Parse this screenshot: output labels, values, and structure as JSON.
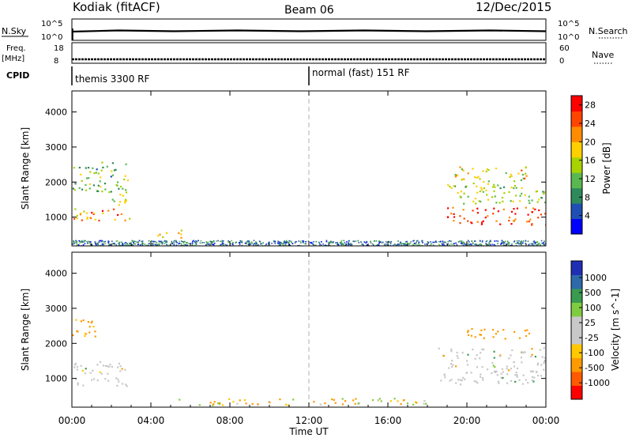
{
  "header": {
    "station": "Kodiak (fitACF)",
    "beam": "Beam 06",
    "date": "12/Dec/2015"
  },
  "top_panels": {
    "nsky": {
      "label": "N.Sky",
      "ticks_left": [
        "10^5",
        "10^0"
      ],
      "right_label": "N.Search",
      "ticks_right": [
        "10^5",
        "10^0"
      ]
    },
    "freq": {
      "label_line1": "Freq.",
      "label_line2": "[MHz]",
      "ticks_left": [
        "18",
        "8"
      ],
      "right_label": "Nave",
      "ticks_right": [
        "60",
        "0"
      ]
    },
    "cpid": {
      "label": "CPID",
      "segments": [
        {
          "label": "themis 3300 RF"
        },
        {
          "label": "normal (fast) 151 RF"
        }
      ]
    }
  },
  "colors": {
    "power_scale": [
      "#0000ff",
      "#1f4fb4",
      "#2e8a5a",
      "#5ab850",
      "#a8d200",
      "#ffd000",
      "#ff8c00",
      "#ff4400",
      "#ff0000"
    ],
    "velocity_scale": [
      "#ff0000",
      "#ff5a00",
      "#ff9a00",
      "#ffc800",
      "#c8c8c8",
      "#c8c8c8",
      "#80cc40",
      "#3a9a50",
      "#2e6aaa",
      "#1f2fb4"
    ],
    "ground_scatter": "#c8c8c8"
  },
  "chart_data": [
    {
      "type": "heatmap",
      "title": "Power",
      "xlabel": "Time UT",
      "ylabel": "Slant Range [km]",
      "xlim": [
        "00:00",
        "24:00"
      ],
      "ylim": [
        180,
        4600
      ],
      "x_ticks": [
        "00:00",
        "04:00",
        "08:00",
        "12:00",
        "16:00",
        "20:00",
        "00:00"
      ],
      "y_ticks": [
        1000,
        2000,
        3000,
        4000
      ],
      "colorbar_label": "Power [dB]",
      "colorbar_ticks": [
        4,
        8,
        12,
        16,
        20,
        24,
        28
      ],
      "colorbar_range": [
        0,
        30
      ],
      "marker_time_hours": 12,
      "features": [
        {
          "t_start": 0.0,
          "t_end": 3.0,
          "range_start": 900,
          "range_end": 1300,
          "value_dB": 22
        },
        {
          "t_start": 0.0,
          "t_end": 2.8,
          "range_start": 1700,
          "range_end": 2600,
          "value_dB": 12
        },
        {
          "t_start": 2.0,
          "t_end": 2.9,
          "range_start": 1300,
          "range_end": 1900,
          "value_dB": 16
        },
        {
          "t_start": 4.2,
          "t_end": 5.6,
          "range_start": 350,
          "range_end": 650,
          "value_dB": 18
        },
        {
          "t_start": 18.8,
          "t_end": 24.0,
          "range_start": 800,
          "range_end": 1300,
          "value_dB": 26
        },
        {
          "t_start": 19.0,
          "t_end": 24.0,
          "range_start": 1400,
          "range_end": 2100,
          "value_dB": 14
        },
        {
          "t_start": 19.2,
          "t_end": 23.0,
          "range_start": 2100,
          "range_end": 2500,
          "value_dB": 18
        }
      ]
    },
    {
      "type": "heatmap",
      "title": "Velocity",
      "xlabel": "Time UT",
      "ylabel": "Slant Range [km]",
      "xlim": [
        "00:00",
        "24:00"
      ],
      "ylim": [
        180,
        4600
      ],
      "x_ticks": [
        "00:00",
        "04:00",
        "08:00",
        "12:00",
        "16:00",
        "20:00",
        "00:00"
      ],
      "y_ticks": [
        1000,
        2000,
        3000,
        4000
      ],
      "colorbar_label": "Velocity [m s^-1]",
      "colorbar_ticks": [
        1000,
        500,
        100,
        25,
        -25,
        -100,
        -500,
        -1000
      ],
      "marker_time_hours": 12,
      "features": [
        {
          "t_start": 0.0,
          "t_end": 2.8,
          "range_start": 800,
          "range_end": 1500,
          "value_ms": 0,
          "ground_scatter": true
        },
        {
          "t_start": 0.0,
          "t_end": 1.5,
          "range_start": 2200,
          "range_end": 2700,
          "value_ms": -200
        },
        {
          "t_start": 18.5,
          "t_end": 24.0,
          "range_start": 850,
          "range_end": 1900,
          "value_ms": 0,
          "ground_scatter": true
        },
        {
          "t_start": 20.0,
          "t_end": 23.5,
          "range_start": 2150,
          "range_end": 2450,
          "value_ms": -250
        },
        {
          "t_start": 5.0,
          "t_end": 18.0,
          "range_start": 250,
          "range_end": 450,
          "value_ms": -60
        }
      ]
    }
  ]
}
